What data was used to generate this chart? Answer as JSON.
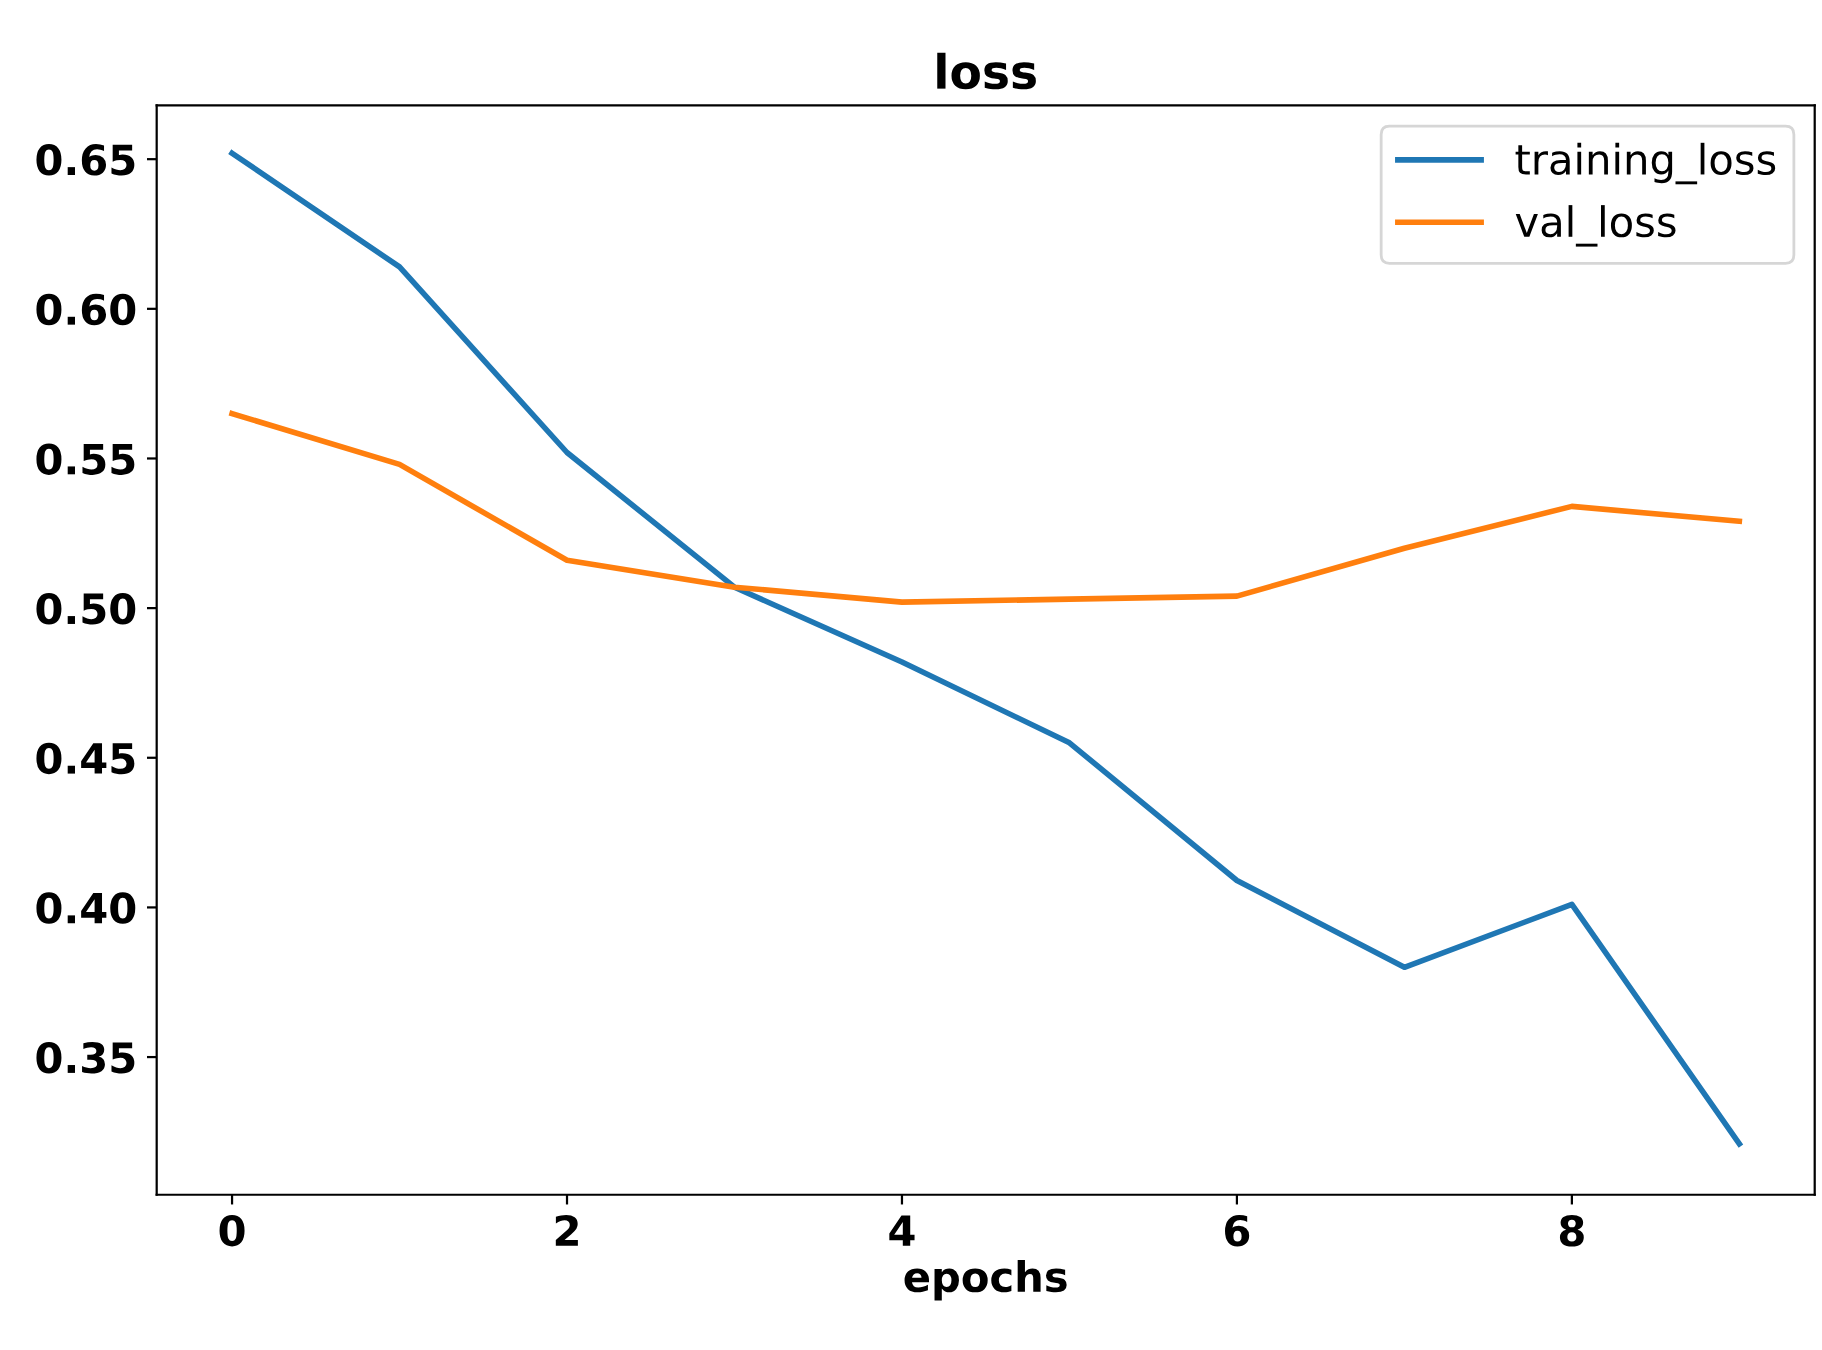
{
  "chart_data": {
    "type": "line",
    "title": "loss",
    "xlabel": "epochs",
    "x": [
      0,
      1,
      2,
      3,
      4,
      5,
      6,
      7,
      8,
      9
    ],
    "series": [
      {
        "name": "training_loss",
        "color": "#1f77b4",
        "values": [
          0.652,
          0.614,
          0.552,
          0.507,
          0.482,
          0.455,
          0.409,
          0.38,
          0.401,
          0.321
        ]
      },
      {
        "name": "val_loss",
        "color": "#ff7f0e",
        "values": [
          0.565,
          0.548,
          0.516,
          0.507,
          0.502,
          0.503,
          0.504,
          0.52,
          0.534,
          0.529
        ]
      }
    ],
    "xlim": [
      -0.45,
      9.45
    ],
    "ylim": [
      0.304,
      0.668
    ],
    "xticks": [
      0,
      2,
      4,
      6,
      8
    ],
    "yticks": [
      0.35,
      {
        "value": 0.4,
        "label": "0.40"
      },
      0.45,
      {
        "value": 0.5,
        "label": "0.50"
      },
      0.55,
      {
        "value": 0.6,
        "label": "0.60"
      },
      0.65
    ],
    "legend": "top right",
    "grid": false
  }
}
